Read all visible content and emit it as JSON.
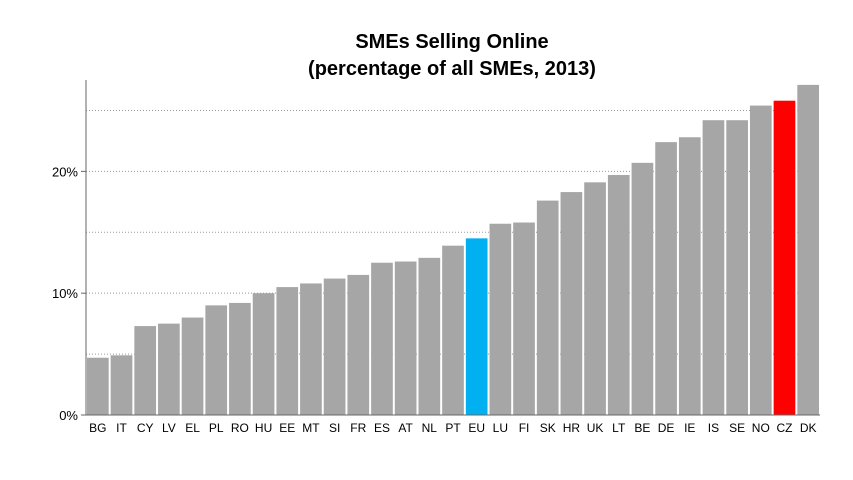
{
  "chart_data": {
    "type": "bar",
    "title": "SMEs Selling Online",
    "subtitle": "(percentage of all SMEs, 2013)",
    "xlabel": "",
    "ylabel": "",
    "ylim": [
      0,
      27.5
    ],
    "yticks": [
      {
        "value": 0,
        "label": "0%"
      },
      {
        "value": 10,
        "label": "10%"
      },
      {
        "value": 20,
        "label": "20%"
      }
    ],
    "minor_gridlines": [
      5,
      15,
      25
    ],
    "grid": true,
    "categories": [
      "BG",
      "IT",
      "CY",
      "LV",
      "EL",
      "PL",
      "RO",
      "HU",
      "EE",
      "MT",
      "SI",
      "FR",
      "ES",
      "AT",
      "NL",
      "PT",
      "EU",
      "LU",
      "FI",
      "SK",
      "HR",
      "UK",
      "LT",
      "BE",
      "DE",
      "IE",
      "IS",
      "SE",
      "NO",
      "CZ",
      "DK"
    ],
    "values": [
      4.7,
      4.9,
      7.3,
      7.5,
      8.0,
      9.0,
      9.2,
      10.0,
      10.5,
      10.8,
      11.2,
      11.5,
      12.5,
      12.6,
      12.9,
      13.9,
      14.5,
      15.7,
      15.8,
      17.6,
      18.3,
      19.1,
      19.7,
      20.7,
      22.4,
      22.8,
      24.2,
      24.2,
      25.4,
      25.8,
      27.1
    ],
    "colors": {
      "default": "#a6a6a6",
      "highlight_EU": "#00b0f0",
      "highlight_CZ": "#ff0000",
      "grid": "#999999",
      "axis": "#666666"
    },
    "highlights": {
      "EU": "#00b0f0",
      "CZ": "#ff0000"
    },
    "legend": "none"
  }
}
